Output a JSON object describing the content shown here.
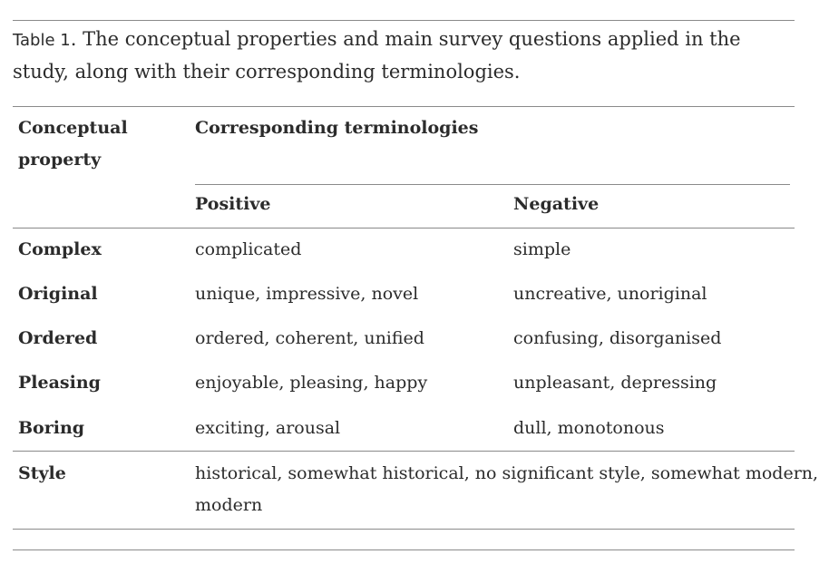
{
  "caption": {
    "label": "Table 1",
    "text": ". The conceptual properties and main survey questions applied in the study, along with their corresponding terminologies."
  },
  "table": {
    "headers": {
      "property_line1": "Conceptual",
      "property_line2": "property",
      "terminologies": "Corresponding terminologies",
      "positive": "Positive",
      "negative": "Negative"
    },
    "rows": [
      {
        "property": "Complex",
        "positive": "complicated",
        "negative": "simple"
      },
      {
        "property": "Original",
        "positive": "unique, impressive, novel",
        "negative": "uncreative, unoriginal"
      },
      {
        "property": "Ordered",
        "positive": "ordered, coherent, unified",
        "negative": "confusing, disorganised"
      },
      {
        "property": "Pleasing",
        "positive": "enjoyable, pleasing, happy",
        "negative": "unpleasant, depressing"
      },
      {
        "property": "Boring",
        "positive": "exciting, arousal",
        "negative": "dull, monotonous"
      }
    ],
    "style_row": {
      "property": "Style",
      "line1": "historical, somewhat historical, no significant style, somewhat modern,",
      "line2": "modern"
    }
  }
}
